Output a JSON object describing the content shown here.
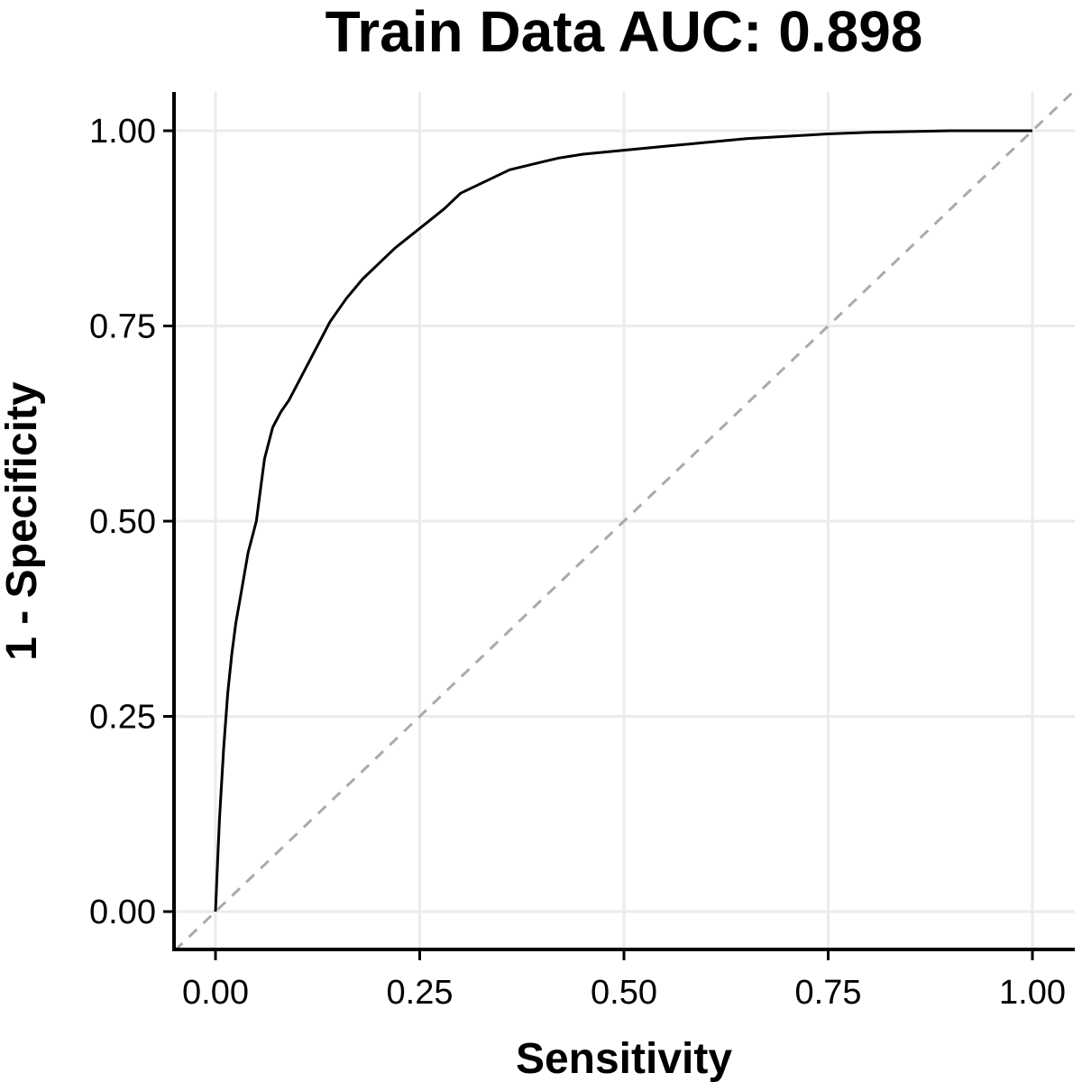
{
  "chart_data": {
    "type": "line",
    "title": "Train Data AUC: 0.898",
    "xlabel": "Sensitivity",
    "ylabel": "1 - Specificity",
    "xlim": [
      0,
      1
    ],
    "ylim": [
      0,
      1
    ],
    "x_ticks": [
      "0.00",
      "0.25",
      "0.50",
      "0.75",
      "1.00"
    ],
    "y_ticks": [
      "0.00",
      "0.25",
      "0.50",
      "0.75",
      "1.00"
    ],
    "grid": true,
    "legend": "none",
    "series": [
      {
        "line_color": "#000000",
        "x": [
          0,
          0.002,
          0.005,
          0.01,
          0.015,
          0.02,
          0.025,
          0.03,
          0.035,
          0.04,
          0.045,
          0.05,
          0.055,
          0.06,
          0.065,
          0.07,
          0.08,
          0.09,
          0.1,
          0.11,
          0.12,
          0.13,
          0.14,
          0.15,
          0.16,
          0.18,
          0.2,
          0.22,
          0.25,
          0.28,
          0.3,
          0.33,
          0.36,
          0.4,
          0.42,
          0.45,
          0.5,
          0.55,
          0.6,
          0.65,
          0.7,
          0.75,
          0.8,
          0.85,
          0.9,
          1.0
        ],
        "y": [
          0,
          0.05,
          0.12,
          0.21,
          0.28,
          0.33,
          0.37,
          0.4,
          0.43,
          0.46,
          0.48,
          0.5,
          0.54,
          0.58,
          0.6,
          0.62,
          0.64,
          0.655,
          0.675,
          0.695,
          0.715,
          0.735,
          0.755,
          0.77,
          0.785,
          0.81,
          0.83,
          0.85,
          0.875,
          0.9,
          0.92,
          0.935,
          0.95,
          0.96,
          0.965,
          0.97,
          0.975,
          0.98,
          0.985,
          0.99,
          0.993,
          0.996,
          0.998,
          0.999,
          1.0,
          1.0
        ]
      },
      {
        "line_color": "#aaaaaa",
        "line_style": "dashed",
        "x": [
          0,
          1
        ],
        "y": [
          0,
          1
        ]
      }
    ]
  }
}
